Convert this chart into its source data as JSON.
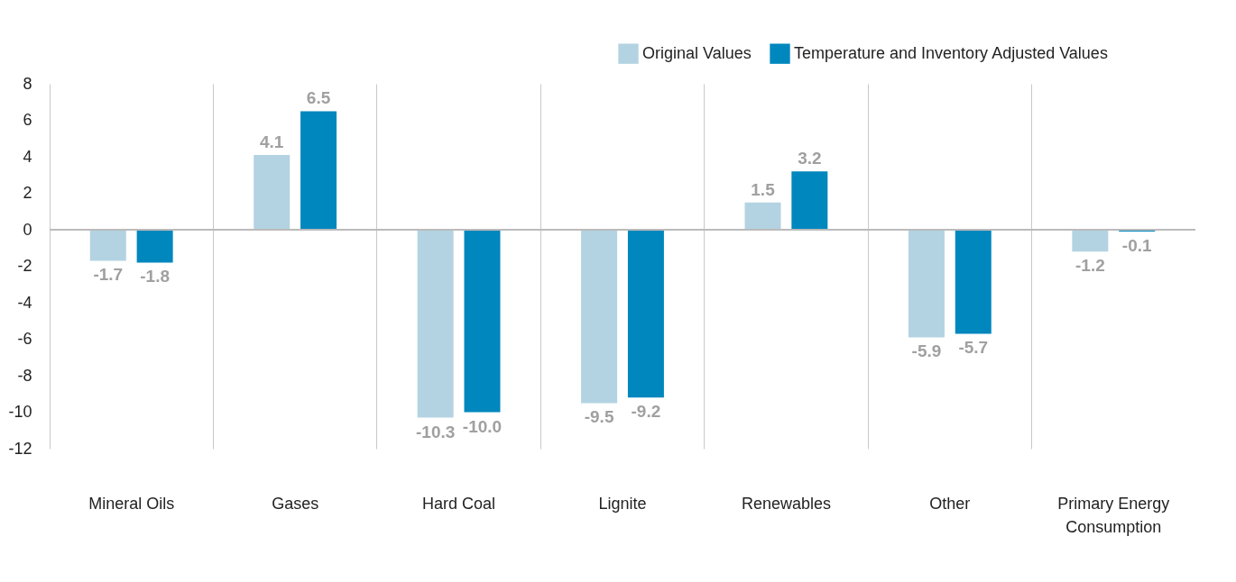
{
  "chart_data": {
    "type": "bar",
    "categories": [
      "Mineral Oils",
      "Gases",
      "Hard Coal",
      "Lignite",
      "Renewables",
      "Other",
      "Primary Energy Consumption"
    ],
    "series": [
      {
        "name": "Original Values",
        "color": "#b3d3e2",
        "values": [
          -1.7,
          4.1,
          -10.3,
          -9.5,
          1.5,
          -5.9,
          -1.2
        ],
        "value_labels": [
          "-1.7",
          "4.1",
          "-10.3",
          "-9.5",
          "1.5",
          "-5.9",
          "-1.2"
        ]
      },
      {
        "name": "Temperature and Inventory Adjusted Values",
        "color": "#0087be",
        "values": [
          -1.8,
          6.5,
          -10.0,
          -9.2,
          3.2,
          -5.7,
          -0.1
        ],
        "value_labels": [
          "-1.8",
          "6.5",
          "-10.0",
          "-9.2",
          "3.2",
          "-5.7",
          "-0.1"
        ]
      }
    ],
    "ylim": [
      -12,
      8
    ],
    "yticks": [
      -12,
      -10,
      -8,
      -6,
      -4,
      -2,
      0,
      2,
      4,
      6,
      8
    ],
    "grid": "x",
    "legend": "top right"
  }
}
